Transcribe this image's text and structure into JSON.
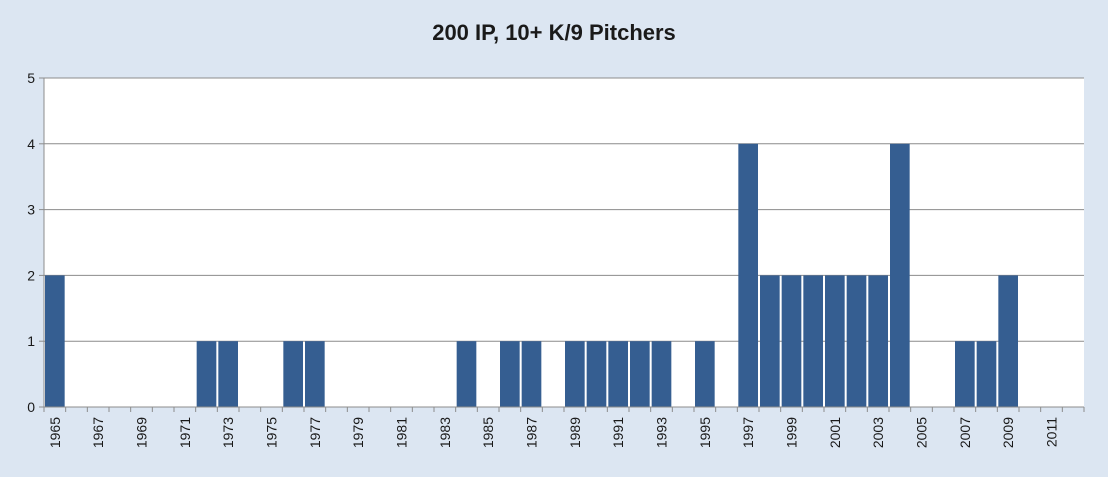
{
  "chart_data": {
    "type": "bar",
    "title": "200 IP, 10+ K/9 Pitchers",
    "xlabel": "",
    "ylabel": "",
    "ylim": [
      0,
      5
    ],
    "yticks": [
      0,
      1,
      2,
      3,
      4,
      5
    ],
    "grid": true,
    "legend": "none",
    "bar_color": "#355e91",
    "categories": [
      "1965",
      "1966",
      "1967",
      "1968",
      "1969",
      "1970",
      "1971",
      "1972",
      "1973",
      "1974",
      "1975",
      "1976",
      "1977",
      "1978",
      "1979",
      "1980",
      "1981",
      "1982",
      "1983",
      "1984",
      "1985",
      "1986",
      "1987",
      "1988",
      "1989",
      "1990",
      "1991",
      "1992",
      "1993",
      "1994",
      "1995",
      "1996",
      "1997",
      "1998",
      "1999",
      "2000",
      "2001",
      "2002",
      "2003",
      "2004",
      "2005",
      "2006",
      "2007",
      "2008",
      "2009",
      "2010",
      "2011",
      "2012"
    ],
    "tick_labels": [
      "1965",
      "",
      "1967",
      "",
      "1969",
      "",
      "1971",
      "",
      "1973",
      "",
      "1975",
      "",
      "1977",
      "",
      "1979",
      "",
      "1981",
      "",
      "1983",
      "",
      "1985",
      "",
      "1987",
      "",
      "1989",
      "",
      "1991",
      "",
      "1993",
      "",
      "1995",
      "",
      "1997",
      "",
      "1999",
      "",
      "2001",
      "",
      "2003",
      "",
      "2005",
      "",
      "2007",
      "",
      "2009",
      "",
      "2011",
      ""
    ],
    "values": [
      2,
      0,
      0,
      0,
      0,
      0,
      0,
      1,
      1,
      0,
      0,
      1,
      1,
      0,
      0,
      0,
      0,
      0,
      0,
      1,
      0,
      1,
      1,
      0,
      1,
      1,
      1,
      1,
      1,
      0,
      1,
      0,
      4,
      2,
      2,
      2,
      2,
      2,
      2,
      4,
      0,
      0,
      1,
      1,
      2,
      0,
      0,
      0
    ]
  }
}
